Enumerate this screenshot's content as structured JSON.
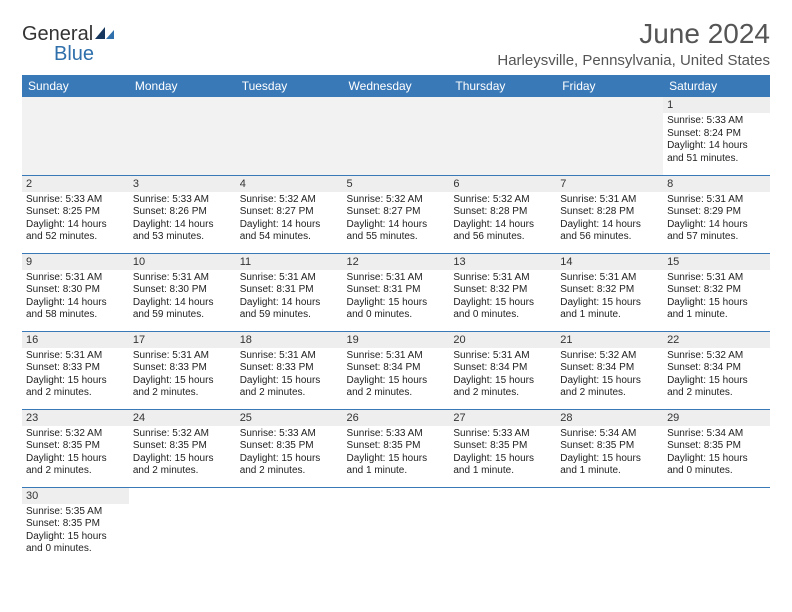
{
  "logo": {
    "part1": "General",
    "part2": "Blue"
  },
  "title": "June 2024",
  "location": "Harleysville, Pennsylvania, United States",
  "colors": {
    "header_bg": "#3a79b7",
    "header_text": "#ffffff",
    "daynum_bg": "#eeeeee",
    "border": "#3a79b7",
    "empty_bg": "#f2f2f2",
    "logo_accent": "#2f6fab"
  },
  "day_labels": [
    "Sunday",
    "Monday",
    "Tuesday",
    "Wednesday",
    "Thursday",
    "Friday",
    "Saturday"
  ],
  "weeks": [
    [
      null,
      null,
      null,
      null,
      null,
      null,
      {
        "n": "1",
        "sr": "Sunrise: 5:33 AM",
        "ss": "Sunset: 8:24 PM",
        "dl1": "Daylight: 14 hours",
        "dl2": "and 51 minutes."
      }
    ],
    [
      {
        "n": "2",
        "sr": "Sunrise: 5:33 AM",
        "ss": "Sunset: 8:25 PM",
        "dl1": "Daylight: 14 hours",
        "dl2": "and 52 minutes."
      },
      {
        "n": "3",
        "sr": "Sunrise: 5:33 AM",
        "ss": "Sunset: 8:26 PM",
        "dl1": "Daylight: 14 hours",
        "dl2": "and 53 minutes."
      },
      {
        "n": "4",
        "sr": "Sunrise: 5:32 AM",
        "ss": "Sunset: 8:27 PM",
        "dl1": "Daylight: 14 hours",
        "dl2": "and 54 minutes."
      },
      {
        "n": "5",
        "sr": "Sunrise: 5:32 AM",
        "ss": "Sunset: 8:27 PM",
        "dl1": "Daylight: 14 hours",
        "dl2": "and 55 minutes."
      },
      {
        "n": "6",
        "sr": "Sunrise: 5:32 AM",
        "ss": "Sunset: 8:28 PM",
        "dl1": "Daylight: 14 hours",
        "dl2": "and 56 minutes."
      },
      {
        "n": "7",
        "sr": "Sunrise: 5:31 AM",
        "ss": "Sunset: 8:28 PM",
        "dl1": "Daylight: 14 hours",
        "dl2": "and 56 minutes."
      },
      {
        "n": "8",
        "sr": "Sunrise: 5:31 AM",
        "ss": "Sunset: 8:29 PM",
        "dl1": "Daylight: 14 hours",
        "dl2": "and 57 minutes."
      }
    ],
    [
      {
        "n": "9",
        "sr": "Sunrise: 5:31 AM",
        "ss": "Sunset: 8:30 PM",
        "dl1": "Daylight: 14 hours",
        "dl2": "and 58 minutes."
      },
      {
        "n": "10",
        "sr": "Sunrise: 5:31 AM",
        "ss": "Sunset: 8:30 PM",
        "dl1": "Daylight: 14 hours",
        "dl2": "and 59 minutes."
      },
      {
        "n": "11",
        "sr": "Sunrise: 5:31 AM",
        "ss": "Sunset: 8:31 PM",
        "dl1": "Daylight: 14 hours",
        "dl2": "and 59 minutes."
      },
      {
        "n": "12",
        "sr": "Sunrise: 5:31 AM",
        "ss": "Sunset: 8:31 PM",
        "dl1": "Daylight: 15 hours",
        "dl2": "and 0 minutes."
      },
      {
        "n": "13",
        "sr": "Sunrise: 5:31 AM",
        "ss": "Sunset: 8:32 PM",
        "dl1": "Daylight: 15 hours",
        "dl2": "and 0 minutes."
      },
      {
        "n": "14",
        "sr": "Sunrise: 5:31 AM",
        "ss": "Sunset: 8:32 PM",
        "dl1": "Daylight: 15 hours",
        "dl2": "and 1 minute."
      },
      {
        "n": "15",
        "sr": "Sunrise: 5:31 AM",
        "ss": "Sunset: 8:32 PM",
        "dl1": "Daylight: 15 hours",
        "dl2": "and 1 minute."
      }
    ],
    [
      {
        "n": "16",
        "sr": "Sunrise: 5:31 AM",
        "ss": "Sunset: 8:33 PM",
        "dl1": "Daylight: 15 hours",
        "dl2": "and 2 minutes."
      },
      {
        "n": "17",
        "sr": "Sunrise: 5:31 AM",
        "ss": "Sunset: 8:33 PM",
        "dl1": "Daylight: 15 hours",
        "dl2": "and 2 minutes."
      },
      {
        "n": "18",
        "sr": "Sunrise: 5:31 AM",
        "ss": "Sunset: 8:33 PM",
        "dl1": "Daylight: 15 hours",
        "dl2": "and 2 minutes."
      },
      {
        "n": "19",
        "sr": "Sunrise: 5:31 AM",
        "ss": "Sunset: 8:34 PM",
        "dl1": "Daylight: 15 hours",
        "dl2": "and 2 minutes."
      },
      {
        "n": "20",
        "sr": "Sunrise: 5:31 AM",
        "ss": "Sunset: 8:34 PM",
        "dl1": "Daylight: 15 hours",
        "dl2": "and 2 minutes."
      },
      {
        "n": "21",
        "sr": "Sunrise: 5:32 AM",
        "ss": "Sunset: 8:34 PM",
        "dl1": "Daylight: 15 hours",
        "dl2": "and 2 minutes."
      },
      {
        "n": "22",
        "sr": "Sunrise: 5:32 AM",
        "ss": "Sunset: 8:34 PM",
        "dl1": "Daylight: 15 hours",
        "dl2": "and 2 minutes."
      }
    ],
    [
      {
        "n": "23",
        "sr": "Sunrise: 5:32 AM",
        "ss": "Sunset: 8:35 PM",
        "dl1": "Daylight: 15 hours",
        "dl2": "and 2 minutes."
      },
      {
        "n": "24",
        "sr": "Sunrise: 5:32 AM",
        "ss": "Sunset: 8:35 PM",
        "dl1": "Daylight: 15 hours",
        "dl2": "and 2 minutes."
      },
      {
        "n": "25",
        "sr": "Sunrise: 5:33 AM",
        "ss": "Sunset: 8:35 PM",
        "dl1": "Daylight: 15 hours",
        "dl2": "and 2 minutes."
      },
      {
        "n": "26",
        "sr": "Sunrise: 5:33 AM",
        "ss": "Sunset: 8:35 PM",
        "dl1": "Daylight: 15 hours",
        "dl2": "and 1 minute."
      },
      {
        "n": "27",
        "sr": "Sunrise: 5:33 AM",
        "ss": "Sunset: 8:35 PM",
        "dl1": "Daylight: 15 hours",
        "dl2": "and 1 minute."
      },
      {
        "n": "28",
        "sr": "Sunrise: 5:34 AM",
        "ss": "Sunset: 8:35 PM",
        "dl1": "Daylight: 15 hours",
        "dl2": "and 1 minute."
      },
      {
        "n": "29",
        "sr": "Sunrise: 5:34 AM",
        "ss": "Sunset: 8:35 PM",
        "dl1": "Daylight: 15 hours",
        "dl2": "and 0 minutes."
      }
    ],
    [
      {
        "n": "30",
        "sr": "Sunrise: 5:35 AM",
        "ss": "Sunset: 8:35 PM",
        "dl1": "Daylight: 15 hours",
        "dl2": "and 0 minutes."
      },
      null,
      null,
      null,
      null,
      null,
      null
    ]
  ]
}
